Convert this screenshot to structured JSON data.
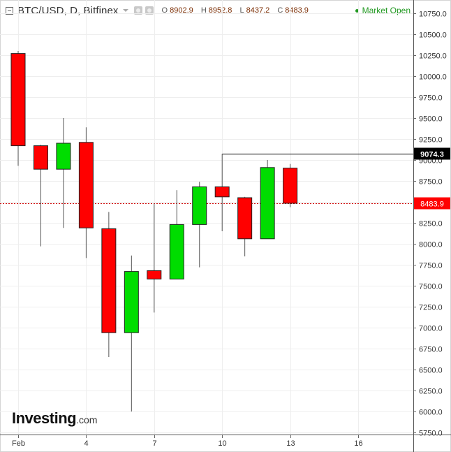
{
  "header": {
    "title": "BTC/USD, D, Bitfinex",
    "ohlc": [
      {
        "key": "O",
        "value": "8902.9"
      },
      {
        "key": "H",
        "value": "8952.8"
      },
      {
        "key": "L",
        "value": "8437.2"
      },
      {
        "key": "C",
        "value": "8483.9"
      }
    ],
    "market_status": "Market Open"
  },
  "logo": {
    "main": "Investing",
    "suffix": ".com"
  },
  "colors": {
    "up": "#00dd00",
    "down": "#ff0000",
    "grid": "#eeeeee",
    "price_line": "#cc0000",
    "market_status": "#229922"
  },
  "chart_data": {
    "type": "candlestick",
    "symbol": "BTC/USD",
    "interval": "D",
    "exchange": "Bitfinex",
    "ylim": [
      5750,
      10750
    ],
    "y_ticks": [
      "10750.0",
      "10500.0",
      "10250.0",
      "10000.0",
      "9750.0",
      "9500.0",
      "9250.0",
      "9000.0",
      "8750.0",
      "8500.0",
      "8250.0",
      "8000.0",
      "7750.0",
      "7500.0",
      "7250.0",
      "7000.0",
      "6750.0",
      "6500.0",
      "6250.0",
      "6000.0",
      "5750.0"
    ],
    "x_ticks": [
      {
        "label": "Feb",
        "day": 1
      },
      {
        "label": "4",
        "day": 4
      },
      {
        "label": "7",
        "day": 7
      },
      {
        "label": "10",
        "day": 10
      },
      {
        "label": "13",
        "day": 13
      },
      {
        "label": "16",
        "day": 16
      }
    ],
    "xlim_days": [
      0.8,
      18.5
    ],
    "candles": [
      {
        "day": 1,
        "open": 10270,
        "high": 10300,
        "low": 8930,
        "close": 9170
      },
      {
        "day": 2,
        "open": 9170,
        "high": 9180,
        "low": 7970,
        "close": 8890
      },
      {
        "day": 3,
        "open": 8890,
        "high": 9500,
        "low": 8190,
        "close": 9200
      },
      {
        "day": 4,
        "open": 9210,
        "high": 9390,
        "low": 7830,
        "close": 8190
      },
      {
        "day": 5,
        "open": 8180,
        "high": 8380,
        "low": 6650,
        "close": 6940
      },
      {
        "day": 6,
        "open": 6940,
        "high": 7860,
        "low": 6000,
        "close": 7670
      },
      {
        "day": 7,
        "open": 7680,
        "high": 8480,
        "low": 7180,
        "close": 7580
      },
      {
        "day": 8,
        "open": 7580,
        "high": 8640,
        "low": 7580,
        "close": 8230
      },
      {
        "day": 9,
        "open": 8230,
        "high": 8740,
        "low": 7720,
        "close": 8680
      },
      {
        "day": 10,
        "open": 8680,
        "high": 9074.3,
        "low": 8150,
        "close": 8560
      },
      {
        "day": 11,
        "open": 8550,
        "high": 8560,
        "low": 7850,
        "close": 8060
      },
      {
        "day": 12,
        "open": 8060,
        "high": 9000,
        "low": 8060,
        "close": 8910
      },
      {
        "day": 13,
        "open": 8902.9,
        "high": 8952.8,
        "low": 8437.2,
        "close": 8483.9
      }
    ],
    "high_marker": {
      "value": 9074.3,
      "label": "9074.3",
      "from_day": 10
    },
    "last_price": {
      "value": 8483.9,
      "label": "8483.9"
    }
  }
}
